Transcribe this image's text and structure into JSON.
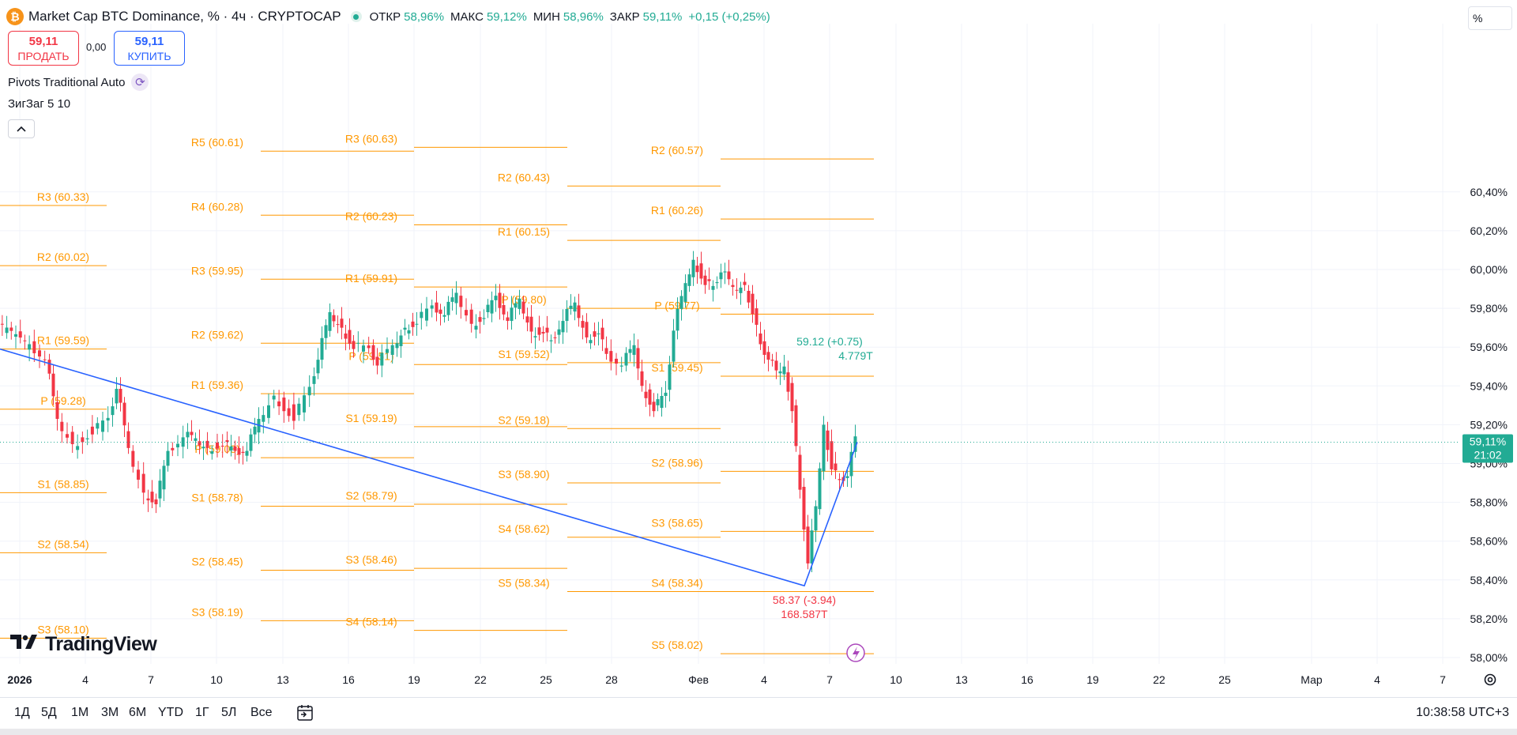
{
  "header": {
    "symbol_icon": "bitcoin-icon",
    "title": "Market Cap BTC Dominance, % · 4ч · CRYPTOCAP",
    "open_label": "ОТКР",
    "open_value": "58,96%",
    "high_label": "МАКС",
    "high_value": "59,12%",
    "low_label": "МИН",
    "low_value": "58,96%",
    "close_label": "ЗАКР",
    "close_value": "59,11%",
    "change": "+0,15 (+0,25%)"
  },
  "trade": {
    "sell_price": "59,11",
    "sell_label": "ПРОДАТЬ",
    "spread": "0,00",
    "buy_price": "59,11",
    "buy_label": "КУПИТЬ"
  },
  "indicators": {
    "pivots": "Pivots Traditional Auto",
    "zigzag": "ЗигЗаг 5 10"
  },
  "scale_mode": "%",
  "chart_data": {
    "type": "candlestick",
    "symbol": "CRYPTOCAP",
    "interval": "4ч",
    "y_axis": {
      "ticks": [
        "58,00%",
        "58,20%",
        "58,40%",
        "58,60%",
        "58,80%",
        "59,00%",
        "59,20%",
        "59,40%",
        "59,60%",
        "59,80%",
        "60,00%",
        "60,20%",
        "60,40%"
      ],
      "range": [
        57.95,
        60.6
      ],
      "last_price_label": "59,11%",
      "last_price_countdown": "21:02",
      "last_price": 59.11
    },
    "x_axis": {
      "ticks": [
        "2026",
        "4",
        "7",
        "10",
        "13",
        "16",
        "19",
        "22",
        "25",
        "28",
        "Фев",
        "4",
        "7",
        "10",
        "13",
        "16",
        "19",
        "22",
        "25",
        "Мар",
        "4",
        "7"
      ]
    },
    "pivot_periods": [
      {
        "levels": [
          {
            "label": "R3 (60.33)",
            "value": 60.33
          },
          {
            "label": "R2 (60.02)",
            "value": 60.02
          },
          {
            "label": "R1 (59.59)",
            "value": 59.59
          },
          {
            "label": "P (59.28)",
            "value": 59.28
          },
          {
            "label": "S1 (58.85)",
            "value": 58.85
          },
          {
            "label": "S2 (58.54)",
            "value": 58.54
          },
          {
            "label": "S3 (58.10)",
            "value": 58.1
          }
        ]
      },
      {
        "levels": [
          {
            "label": "R5 (60.61)",
            "value": 60.61
          },
          {
            "label": "R4 (60.28)",
            "value": 60.28
          },
          {
            "label": "R3 (59.95)",
            "value": 59.95
          },
          {
            "label": "R2 (59.62)",
            "value": 59.62
          },
          {
            "label": "R1 (59.36)",
            "value": 59.36
          },
          {
            "label": "P (59.03)",
            "value": 59.03
          },
          {
            "label": "S1 (58.78)",
            "value": 58.78
          },
          {
            "label": "S2 (58.45)",
            "value": 58.45
          },
          {
            "label": "S3 (58.19)",
            "value": 58.19
          }
        ]
      },
      {
        "levels": [
          {
            "label": "R3 (60.63)",
            "value": 60.63
          },
          {
            "label": "R2 (60.23)",
            "value": 60.23
          },
          {
            "label": "R1 (59.91)",
            "value": 59.91
          },
          {
            "label": "P (59.51)",
            "value": 59.51
          },
          {
            "label": "S1 (59.19)",
            "value": 59.19
          },
          {
            "label": "S2 (58.79)",
            "value": 58.79
          },
          {
            "label": "S3 (58.46)",
            "value": 58.46
          },
          {
            "label": "S4 (58.14)",
            "value": 58.14
          }
        ]
      },
      {
        "levels": [
          {
            "label": "R2 (60.43)",
            "value": 60.43
          },
          {
            "label": "R1 (60.15)",
            "value": 60.15
          },
          {
            "label": "P (59.80)",
            "value": 59.8
          },
          {
            "label": "S1 (59.52)",
            "value": 59.52
          },
          {
            "label": "S2 (59.18)",
            "value": 59.18
          },
          {
            "label": "S3 (58.90)",
            "value": 58.9
          },
          {
            "label": "S4 (58.62)",
            "value": 58.62
          },
          {
            "label": "S5 (58.34)",
            "value": 58.34
          }
        ]
      },
      {
        "levels": [
          {
            "label": "R2 (60.57)",
            "value": 60.57
          },
          {
            "label": "R1 (60.26)",
            "value": 60.26
          },
          {
            "label": "P (59.77)",
            "value": 59.77
          },
          {
            "label": "S1 (59.45)",
            "value": 59.45
          },
          {
            "label": "S2 (58.96)",
            "value": 58.96
          },
          {
            "label": "S3 (58.65)",
            "value": 58.65
          },
          {
            "label": "S4 (58.34)",
            "value": 58.34
          },
          {
            "label": "S5 (58.02)",
            "value": 58.02
          }
        ]
      }
    ],
    "zigzag": {
      "points": [
        {
          "date": "2026-01-01",
          "value": 59.59
        },
        {
          "date": "2026-02-06",
          "value": 58.37
        },
        {
          "date": "2026-02-08",
          "value": 59.11
        }
      ],
      "labels": [
        {
          "text": "58.37 (-3.94)",
          "sub": "168.587T",
          "value": 58.37,
          "color": "#f23645"
        },
        {
          "text": "59.12 (+0.75)",
          "sub": "4.779T",
          "value": 59.12,
          "color": "#22ab94"
        }
      ]
    },
    "colors": {
      "up": "#22ab94",
      "down": "#f23645",
      "pivot": "#ff9800",
      "zigzag": "#2962ff"
    }
  },
  "bottom": {
    "ranges": [
      "1Д",
      "5Д",
      "1М",
      "3М",
      "6М",
      "YTD",
      "1Г",
      "5Л",
      "Все"
    ],
    "clock": "10:38:58 UTC+3"
  },
  "logo": "TradingView"
}
